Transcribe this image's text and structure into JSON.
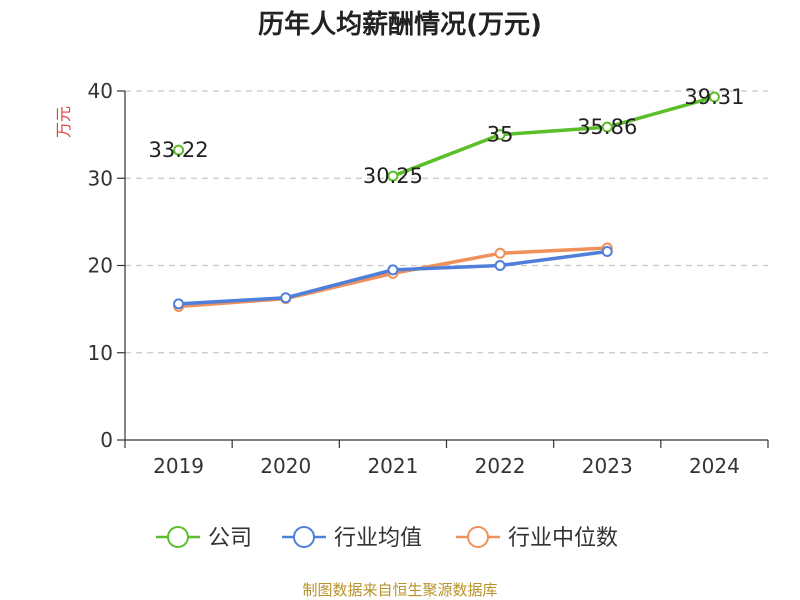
{
  "chart_data": {
    "type": "line",
    "title": "历年人均薪酬情况(万元)",
    "ylabel": "万元",
    "xlabel": "",
    "categories": [
      "2019",
      "2020",
      "2021",
      "2022",
      "2023",
      "2024"
    ],
    "ylim": [
      0,
      40
    ],
    "yticks": [
      0,
      10,
      20,
      30,
      40
    ],
    "grid": true,
    "legend_position": "bottom",
    "series": [
      {
        "name": "公司",
        "color": "#5cbf2a",
        "values": [
          33.22,
          null,
          30.25,
          35,
          35.86,
          39.31
        ],
        "labels": [
          "33.22",
          null,
          "30.25",
          "35",
          "35.86",
          "39.31"
        ]
      },
      {
        "name": "行业均值",
        "color": "#4f7fd8",
        "values": [
          15.6,
          16.3,
          19.5,
          20.0,
          21.6,
          null
        ]
      },
      {
        "name": "行业中位数",
        "color": "#f0905a",
        "values": [
          15.3,
          16.2,
          19.1,
          21.4,
          22.0,
          null
        ]
      }
    ]
  },
  "footer": {
    "source": "制图数据来自恒生聚源数据库"
  }
}
